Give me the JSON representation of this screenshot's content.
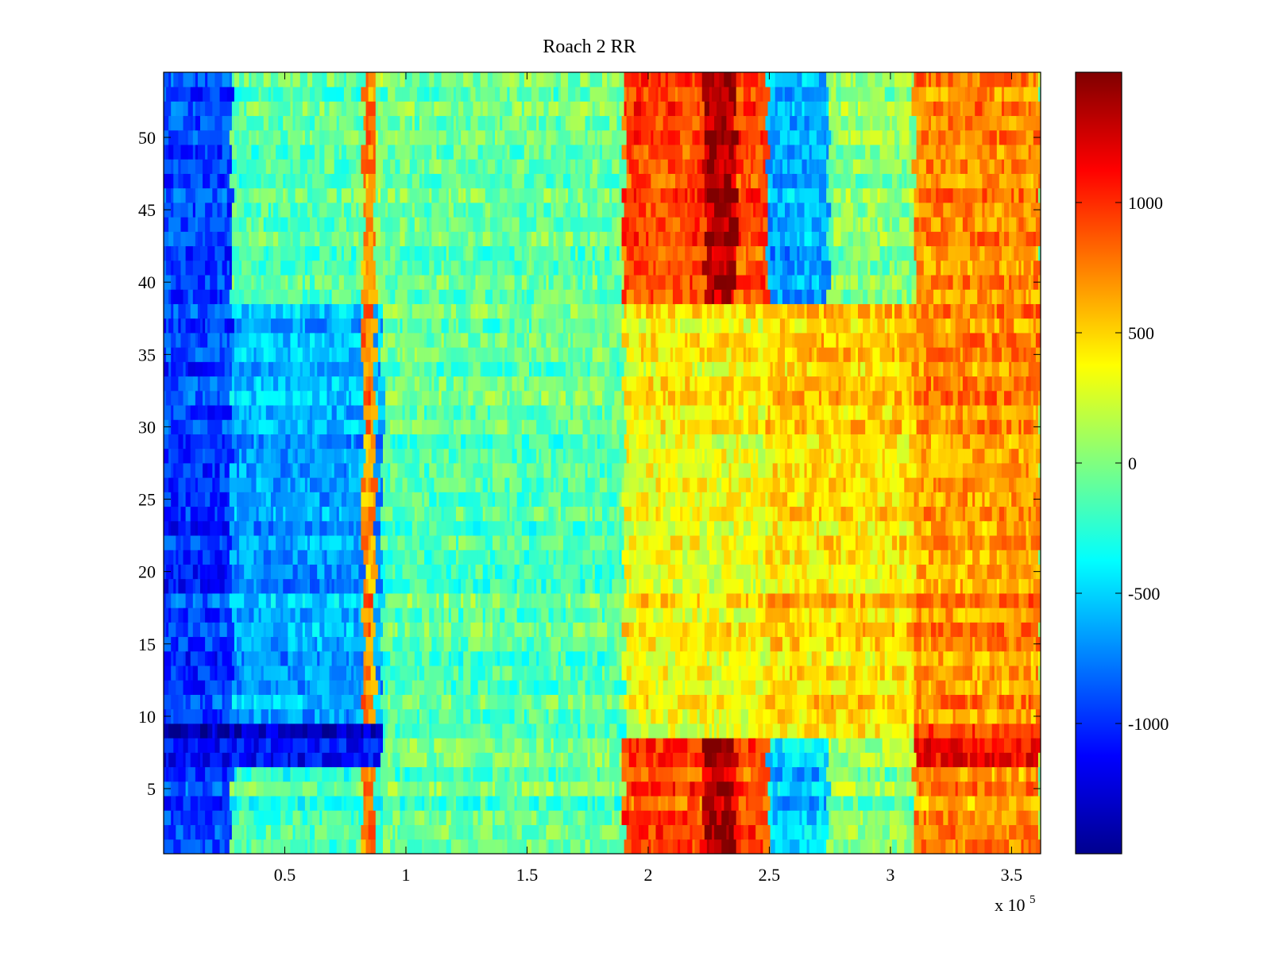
{
  "chart_data": {
    "type": "heatmap",
    "title": "Roach 2 RR",
    "xlabel": "",
    "ylabel": "",
    "x_multiplier_label": "x 10",
    "x_multiplier_exponent": "5",
    "xlim": [
      0,
      3.62
    ],
    "ylim": [
      0.5,
      54.5
    ],
    "x_ticks": [
      0.5,
      1,
      1.5,
      2,
      2.5,
      3,
      3.5
    ],
    "x_tick_labels": [
      "0.5",
      "1",
      "1.5",
      "2",
      "2.5",
      "3",
      "3.5"
    ],
    "y_ticks": [
      5,
      10,
      15,
      20,
      25,
      30,
      35,
      40,
      45,
      50
    ],
    "y_tick_labels": [
      "5",
      "10",
      "15",
      "20",
      "25",
      "30",
      "35",
      "40",
      "45",
      "50"
    ],
    "rows": 54,
    "colorbar": {
      "colormap": "jet",
      "clim": [
        -1500,
        1500
      ],
      "ticks": [
        -1000,
        -500,
        0,
        500,
        1000
      ],
      "tick_labels": [
        "-1000",
        "-500",
        "0",
        "500",
        "1000"
      ]
    },
    "regions": [
      {
        "x": [
          0.0,
          0.28
        ],
        "y": [
          0.5,
          54.5
        ],
        "value": -950
      },
      {
        "x": [
          0.28,
          0.9
        ],
        "y": [
          0.5,
          9.5
        ],
        "value": -200
      },
      {
        "x": [
          0.28,
          0.9
        ],
        "y": [
          9.5,
          38.5
        ],
        "value": -620
      },
      {
        "x": [
          0.28,
          0.82
        ],
        "y": [
          38.5,
          54.5
        ],
        "value": -150
      },
      {
        "x": [
          0.82,
          0.87
        ],
        "y": [
          0.5,
          54.5
        ],
        "value": 700
      },
      {
        "x": [
          0.9,
          1.9
        ],
        "y": [
          0.5,
          54.5
        ],
        "value": -100
      },
      {
        "x": [
          1.9,
          2.49
        ],
        "y": [
          0.5,
          8.5
        ],
        "value": 900
      },
      {
        "x": [
          1.9,
          2.49
        ],
        "y": [
          8.5,
          38.5
        ],
        "value": 380
      },
      {
        "x": [
          1.9,
          2.49
        ],
        "y": [
          38.5,
          54.5
        ],
        "value": 900
      },
      {
        "x": [
          2.23,
          2.36
        ],
        "y": [
          0.5,
          8.5
        ],
        "value": 1350
      },
      {
        "x": [
          2.23,
          2.36
        ],
        "y": [
          38.5,
          54.5
        ],
        "value": 1350
      },
      {
        "x": [
          2.49,
          2.75
        ],
        "y": [
          0.5,
          8.5
        ],
        "value": -550
      },
      {
        "x": [
          2.49,
          2.75
        ],
        "y": [
          38.5,
          54.5
        ],
        "value": -650
      },
      {
        "x": [
          2.75,
          3.1
        ],
        "y": [
          38.5,
          54.5
        ],
        "value": 0
      },
      {
        "x": [
          2.49,
          3.1
        ],
        "y": [
          8.5,
          38.5
        ],
        "value": 500
      },
      {
        "x": [
          3.1,
          3.62
        ],
        "y": [
          0.5,
          54.5
        ],
        "value": 700
      },
      {
        "x": [
          0.0,
          0.9
        ],
        "y": [
          6.5,
          9.5
        ],
        "value": -1200
      },
      {
        "x": [
          3.1,
          3.62
        ],
        "y": [
          6.5,
          9.5
        ],
        "value": 1050
      }
    ]
  }
}
